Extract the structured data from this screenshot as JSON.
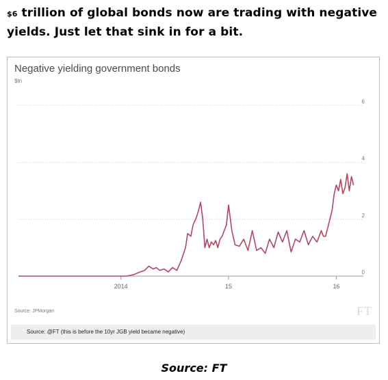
{
  "headline": {
    "prefix": "$6",
    "text": " trillion of global bonds now are trading with negative yields. Just let that sink in for a bit."
  },
  "chart": {
    "footer_source": "Source: JPMorgan",
    "logo": "FT",
    "note": "Source: @FT (this is before the 10yr JGB yield became negative)"
  },
  "bottom_source": "Source: FT",
  "colors": {
    "line": "#b5435e",
    "grid": "#cccccc",
    "note_bg": "#eeeeee"
  },
  "chart_data": {
    "type": "line",
    "title": "Negative yielding government bonds",
    "ylabel": "$tn",
    "xlabel": "",
    "x_tick_labels": [
      {
        "label": "2014",
        "x": 2014.0
      },
      {
        "label": "15",
        "x": 2015.0
      },
      {
        "label": "16",
        "x": 2016.0
      }
    ],
    "y_ticks": [
      0,
      2,
      4,
      6
    ],
    "ylim": [
      0,
      6.2
    ],
    "xlim": [
      2013.05,
      2016.2
    ],
    "grid": "horizontal dotted",
    "series": [
      {
        "x": [
          2013.05,
          2013.3,
          2013.6,
          2013.8,
          2013.92,
          2014.05,
          2014.12,
          2014.18,
          2014.22,
          2014.26,
          2014.3,
          2014.33,
          2014.36,
          2014.4,
          2014.44,
          2014.48,
          2014.52,
          2014.56,
          2014.6,
          2014.62,
          2014.65,
          2014.67,
          2014.7,
          2014.72,
          2014.74,
          2014.76,
          2014.78,
          2014.8,
          2014.82,
          2014.84,
          2014.86,
          2014.88,
          2014.9,
          2014.92,
          2014.94,
          2014.96,
          2014.98,
          2015.0,
          2015.03,
          2015.06,
          2015.1,
          2015.14,
          2015.18,
          2015.22,
          2015.26,
          2015.3,
          2015.34,
          2015.38,
          2015.42,
          2015.46,
          2015.5,
          2015.54,
          2015.58,
          2015.62,
          2015.66,
          2015.7,
          2015.74,
          2015.78,
          2015.82,
          2015.86,
          2015.88,
          2015.9,
          2015.92,
          2015.94,
          2015.96,
          2015.98,
          2016.0,
          2016.02,
          2016.04,
          2016.06,
          2016.08,
          2016.1,
          2016.12,
          2016.14,
          2016.16
        ],
        "y": [
          0.0,
          0.0,
          0.0,
          0.0,
          0.0,
          0.0,
          0.05,
          0.15,
          0.2,
          0.35,
          0.25,
          0.3,
          0.2,
          0.25,
          0.15,
          0.3,
          0.2,
          0.55,
          1.0,
          1.5,
          1.4,
          1.8,
          2.05,
          2.3,
          2.6,
          2.0,
          1.0,
          1.3,
          1.0,
          1.2,
          1.1,
          1.25,
          1.0,
          1.3,
          1.4,
          1.6,
          1.8,
          2.5,
          1.6,
          1.1,
          1.05,
          1.3,
          0.9,
          1.6,
          0.9,
          1.0,
          0.8,
          1.3,
          1.0,
          1.55,
          1.2,
          1.6,
          0.85,
          1.3,
          1.2,
          1.6,
          1.1,
          1.4,
          1.2,
          1.6,
          1.4,
          1.4,
          1.7,
          2.0,
          2.3,
          2.9,
          3.2,
          3.0,
          3.4,
          2.9,
          3.1,
          3.6,
          3.0,
          3.5,
          3.2
        ]
      }
    ]
  }
}
